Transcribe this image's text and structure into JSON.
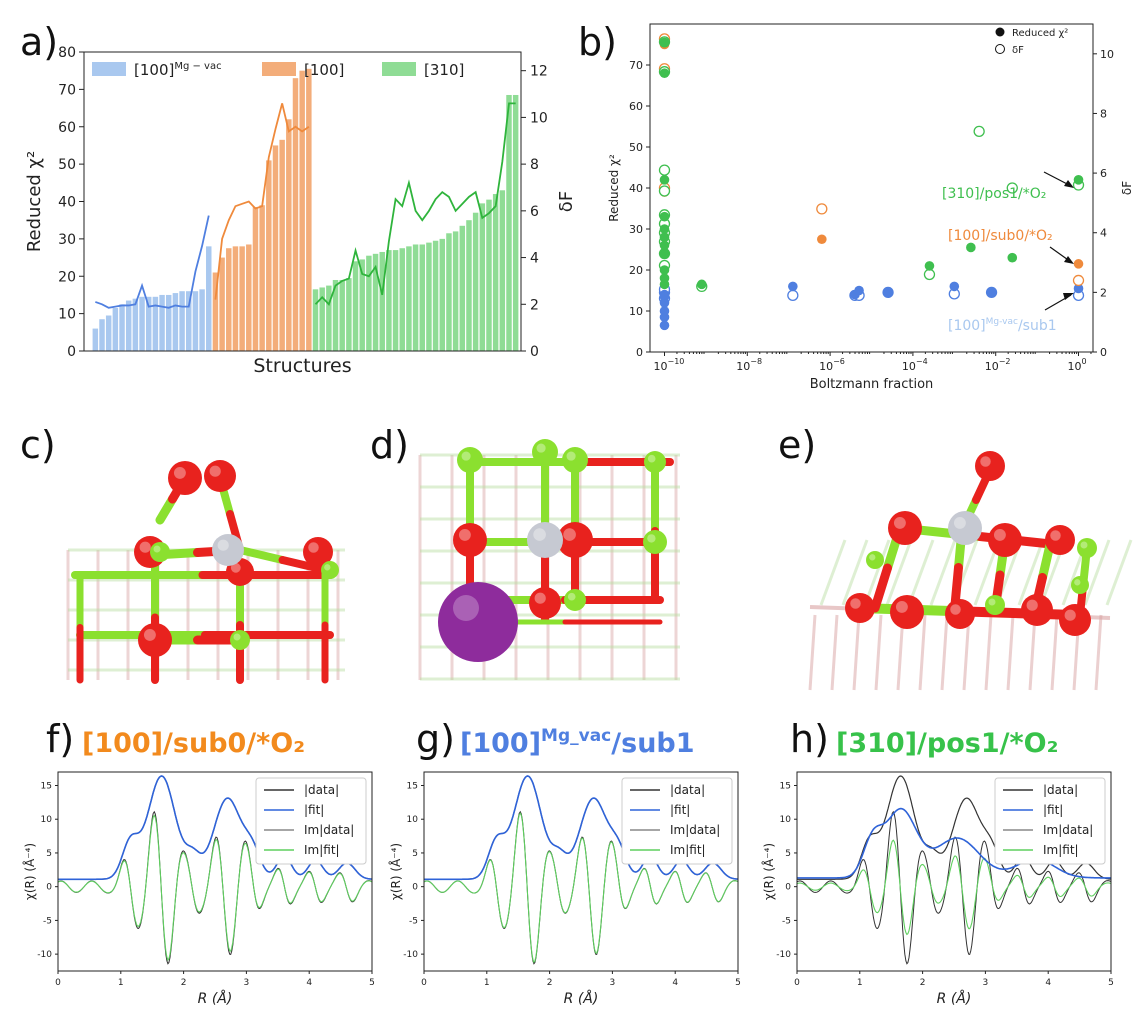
{
  "panels": {
    "a": "a)",
    "b": "b)",
    "c": "c)",
    "d": "d)",
    "e": "e)",
    "f": "f)",
    "g": "g)",
    "h": "h)"
  },
  "colors": {
    "blue": "#4f7fe0",
    "blue_light": "#a9c8ef",
    "orange": "#ef8a3c",
    "orange_light": "#f3ad7a",
    "green": "#3fbf4f",
    "green_light": "#8fdc95",
    "green_line": "#2fb43c",
    "oxygen": "#e8221e",
    "magnesium": "#8be02f",
    "metal": "#c6c9d2",
    "dopant": "#8e2c9c",
    "title_orange": "#f28a1d",
    "title_blue": "#4f7fe0",
    "title_green": "#37c24a"
  },
  "panel_titles": {
    "f": "[100]/sub0/*O₂",
    "g_main": "[100]",
    "g_sup": "Mg_vac",
    "g_tail": "/sub1",
    "h": "[310]/pos1/*O₂"
  },
  "chart_data": [
    {
      "id": "a",
      "type": "bar",
      "xlabel": "Structures",
      "ylabel": "Reduced χ²",
      "y2label": "δF",
      "ylim": [
        0,
        80
      ],
      "y2lim": [
        0,
        12.8
      ],
      "yticks": [
        "0",
        "10",
        "20",
        "30",
        "40",
        "50",
        "60",
        "70",
        "80"
      ],
      "y2ticks": [
        "0",
        "2",
        "4",
        "6",
        "8",
        "10",
        "12"
      ],
      "legend_placement": "top",
      "series": [
        {
          "name": "[100]",
          "name_sup": "Mg − vac",
          "color_key": "blue_light",
          "line_color_key": "blue",
          "values": [
            6,
            8.5,
            9.5,
            11.5,
            12.5,
            13.5,
            14,
            14.5,
            14.5,
            14.5,
            15,
            15,
            15.5,
            16,
            16,
            16,
            16.5,
            28
          ],
          "deltaF": [
            2.1,
            2.0,
            1.85,
            1.9,
            1.95,
            1.95,
            2.0,
            2.8,
            1.9,
            1.95,
            1.9,
            1.85,
            1.95,
            1.9,
            1.9,
            3.4,
            4.5,
            5.8
          ]
        },
        {
          "name": "[100]",
          "color_key": "orange_light",
          "line_color_key": "orange",
          "values": [
            21,
            25,
            27.5,
            28,
            28,
            28.5,
            38.5,
            39,
            51,
            55,
            56.5,
            62,
            73,
            75,
            75.5
          ],
          "deltaF": [
            2.2,
            4.8,
            5.6,
            6.2,
            6.3,
            6.4,
            6.1,
            6.2,
            8.3,
            9.5,
            10.6,
            9.4,
            9.6,
            9.4,
            9.6
          ]
        },
        {
          "name": "[310]",
          "color_key": "green_light",
          "line_color_key": "green_line",
          "values": [
            16.5,
            17,
            17.5,
            19,
            19,
            19.5,
            24,
            24.5,
            25.5,
            26,
            26.5,
            27,
            27,
            27.5,
            28,
            28.5,
            28.5,
            29,
            29.5,
            30,
            31.5,
            32,
            33.5,
            35,
            37,
            39.5,
            40.5,
            42,
            43,
            68.5,
            68.5
          ],
          "deltaF": [
            2.0,
            2.3,
            2.0,
            2.8,
            3.0,
            3.1,
            4.3,
            3.3,
            3.2,
            3.6,
            2.4,
            4.7,
            6.5,
            6.2,
            7.2,
            6.0,
            5.6,
            6.0,
            6.5,
            6.8,
            6.6,
            6.0,
            6.3,
            6.6,
            6.8,
            5.7,
            5.9,
            6.2,
            8.1,
            10.6,
            10.6
          ]
        }
      ]
    },
    {
      "id": "b",
      "type": "scatter",
      "xlabel": "Boltzmann fraction",
      "ylabel": "Reduced χ²",
      "y2label": "δF",
      "xscale": "log",
      "xlim": [
        -10.35,
        0.35
      ],
      "ylim": [
        0,
        80
      ],
      "y2lim": [
        0,
        11
      ],
      "xticks": [
        {
          "exp": -10,
          "base": "10",
          "sup": "−10"
        },
        {
          "exp": -8,
          "base": "10",
          "sup": "−8"
        },
        {
          "exp": -6,
          "base": "10",
          "sup": "−6"
        },
        {
          "exp": -4,
          "base": "10",
          "sup": "−4"
        },
        {
          "exp": -2,
          "base": "10",
          "sup": "−2"
        },
        {
          "exp": 0,
          "base": "10",
          "sup": "0"
        }
      ],
      "yticks": [
        "0",
        "10",
        "20",
        "30",
        "40",
        "50",
        "60",
        "70"
      ],
      "y2ticks": [
        "0",
        "2",
        "4",
        "6",
        "8",
        "10"
      ],
      "legend": [
        "Reduced χ²",
        "δF"
      ],
      "legend_placement": "top-right",
      "series": [
        {
          "name_key": "blue",
          "color_key": "blue",
          "chi2": [
            [
              -10,
              6.5
            ],
            [
              -10,
              8.5
            ],
            [
              -10,
              10
            ],
            [
              -10,
              12
            ],
            [
              -10,
              13.5
            ],
            [
              -10,
              14
            ],
            [
              -6.9,
              16
            ],
            [
              -5.4,
              14
            ],
            [
              -5.3,
              15
            ],
            [
              -4.6,
              14.5
            ],
            [
              -3.0,
              16
            ],
            [
              -2.1,
              14.5
            ],
            [
              0,
              15.5
            ]
          ],
          "deltaF": [
            [
              -10,
              1.8
            ],
            [
              -10,
              2.0
            ],
            [
              -10,
              2.1
            ],
            [
              -6.9,
              1.9
            ],
            [
              -5.4,
              1.9
            ],
            [
              -5.3,
              1.9
            ],
            [
              -4.6,
              2.0
            ],
            [
              -3.0,
              1.95
            ],
            [
              -2.1,
              2.0
            ],
            [
              0,
              1.9
            ]
          ]
        },
        {
          "name_key": "orange",
          "color_key": "orange",
          "chi2": [
            [
              -10,
              39
            ],
            [
              -10,
              68.5
            ],
            [
              -10,
              75
            ],
            [
              -6.2,
              27.5
            ],
            [
              0,
              21.5
            ]
          ],
          "deltaF": [
            [
              -10,
              5.5
            ],
            [
              -10,
              9.5
            ],
            [
              -10,
              10.5
            ],
            [
              -6.2,
              4.8
            ],
            [
              0,
              2.4
            ]
          ]
        },
        {
          "name_key": "green",
          "color_key": "green",
          "chi2": [
            [
              -10,
              16.5
            ],
            [
              -10,
              18
            ],
            [
              -10,
              20
            ],
            [
              -10,
              24
            ],
            [
              -10,
              26
            ],
            [
              -10,
              28
            ],
            [
              -10,
              30
            ],
            [
              -10,
              33
            ],
            [
              -10,
              42
            ],
            [
              -10,
              68
            ],
            [
              -10,
              75.5
            ],
            [
              -9.1,
              16.5
            ],
            [
              -3.6,
              21
            ],
            [
              -2.6,
              25.5
            ],
            [
              -1.6,
              23
            ],
            [
              0,
              42
            ]
          ],
          "deltaF": [
            [
              -10,
              2.9
            ],
            [
              -10,
              3.3
            ],
            [
              -10,
              3.7
            ],
            [
              -10,
              4.0
            ],
            [
              -10,
              4.3
            ],
            [
              -10,
              4.6
            ],
            [
              -10,
              5.4
            ],
            [
              -10,
              6.1
            ],
            [
              -10,
              9.4
            ],
            [
              -10,
              10.4
            ],
            [
              -9.1,
              2.2
            ],
            [
              -3.6,
              2.6
            ],
            [
              -2.4,
              7.4
            ],
            [
              -1.6,
              5.5
            ],
            [
              0,
              5.6
            ]
          ]
        }
      ],
      "annotations": [
        {
          "text": "[310]/pos1/*O₂",
          "color_key": "green"
        },
        {
          "text": "[100]/sub0/*O₂",
          "color_key": "orange"
        },
        {
          "text_main": "[100]",
          "text_sup": "Mg-vac",
          "text_tail": "/sub1",
          "color_key": "blue_light"
        }
      ]
    },
    {
      "id": "f",
      "type": "line",
      "xlabel": "R (Å)",
      "ylabel": "χ(R) (Å⁻⁴)",
      "xlim": [
        0,
        5
      ],
      "ylim": [
        -12.5,
        17
      ],
      "xticks": [
        "0",
        "1",
        "2",
        "3",
        "4",
        "5"
      ],
      "yticks": [
        "-10",
        "-5",
        "0",
        "5",
        "10",
        "15"
      ],
      "legend": [
        "|data|",
        "|fit|",
        "Im|data|",
        "Im|fit|"
      ],
      "legend_placement": "top-right",
      "fit_scale": 1.0,
      "fit_im_scale": 0.95
    },
    {
      "id": "g",
      "type": "line",
      "xlabel": "R (Å)",
      "ylabel": "χ(R) (Å⁻⁴)",
      "xlim": [
        0,
        5
      ],
      "ylim": [
        -12.5,
        17
      ],
      "xticks": [
        "0",
        "1",
        "2",
        "3",
        "4",
        "5"
      ],
      "yticks": [
        "-10",
        "-5",
        "0",
        "5",
        "10",
        "15"
      ],
      "legend": [
        "|data|",
        "|fit|",
        "Im|data|",
        "Im|fit|"
      ],
      "legend_placement": "top-right",
      "fit_scale": 1.0,
      "fit_im_scale": 0.98
    },
    {
      "id": "h",
      "type": "line",
      "xlabel": "R (Å)",
      "ylabel": "χ(R) (Å⁻⁴)",
      "xlim": [
        0,
        5
      ],
      "ylim": [
        -12.5,
        17
      ],
      "xticks": [
        "0",
        "1",
        "2",
        "3",
        "4",
        "5"
      ],
      "yticks": [
        "-10",
        "-5",
        "0",
        "5",
        "10",
        "15"
      ],
      "legend": [
        "|data|",
        "|fit|",
        "Im|data|",
        "Im|fit|"
      ],
      "legend_placement": "top-right",
      "fit_scale": 0.62,
      "fit_im_scale": 0.62
    }
  ]
}
